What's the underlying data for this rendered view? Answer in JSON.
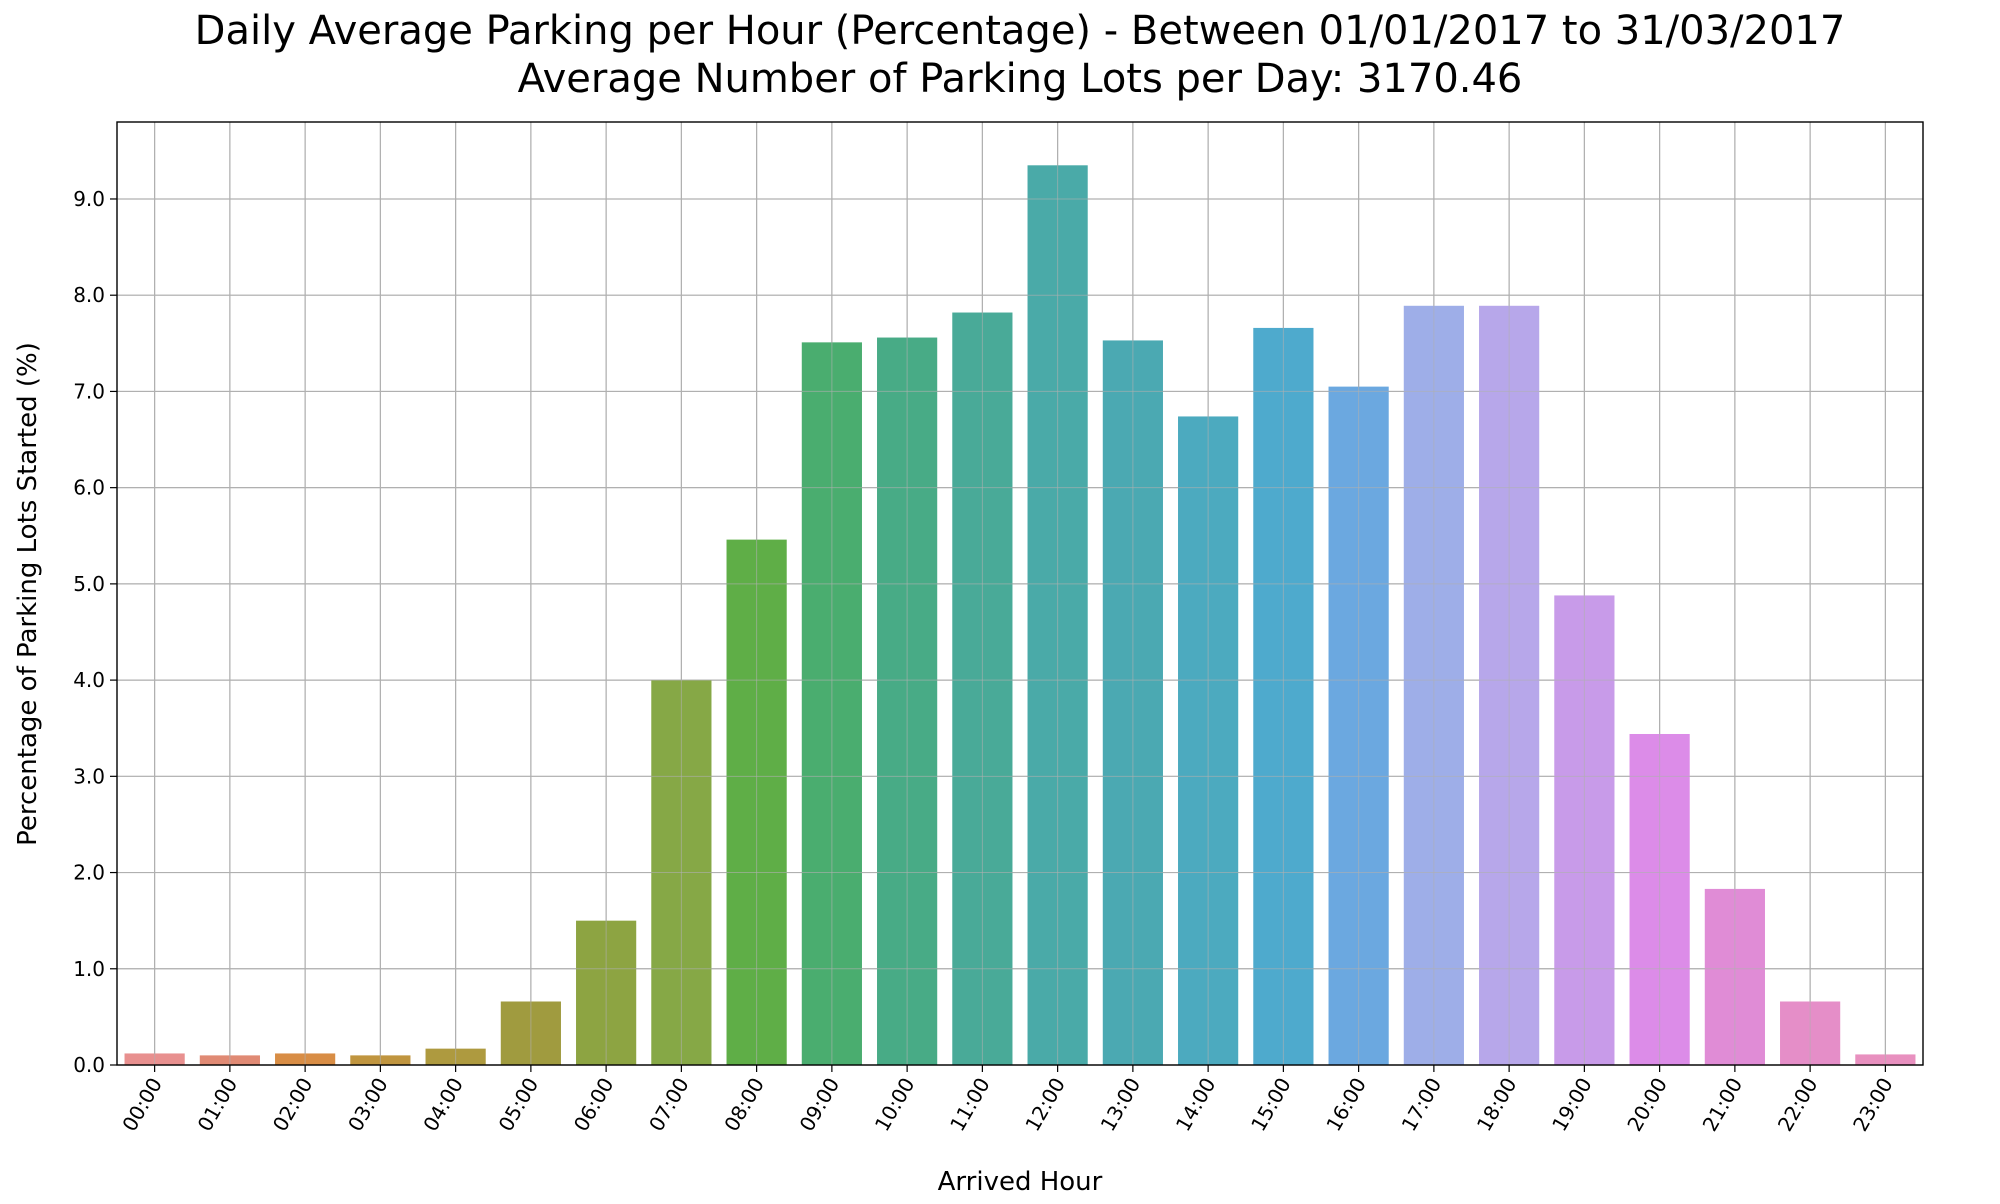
{
  "chart_data": {
    "type": "bar",
    "title": "Daily Average Parking per Hour (Percentage) - Between 01/01/2017 to 31/03/2017",
    "subtitle": "Average Number of Parking Lots per Day: 3170.46",
    "xlabel": "Arrived Hour",
    "ylabel": "Percentage of Parking Lots Started (%)",
    "ylim": [
      0,
      9.8
    ],
    "yticks": [
      "0.0",
      "1.0",
      "2.0",
      "3.0",
      "4.0",
      "5.0",
      "6.0",
      "7.0",
      "8.0",
      "9.0"
    ],
    "grid": true,
    "legend": "none",
    "categories": [
      "00:00",
      "01:00",
      "02:00",
      "03:00",
      "04:00",
      "05:00",
      "06:00",
      "07:00",
      "08:00",
      "09:00",
      "10:00",
      "11:00",
      "12:00",
      "13:00",
      "14:00",
      "15:00",
      "16:00",
      "17:00",
      "18:00",
      "19:00",
      "20:00",
      "21:00",
      "22:00",
      "23:00"
    ],
    "values": [
      0.12,
      0.1,
      0.12,
      0.1,
      0.17,
      0.66,
      1.5,
      4.0,
      5.46,
      7.51,
      7.56,
      7.82,
      9.35,
      7.53,
      6.74,
      7.66,
      7.05,
      7.89,
      7.89,
      4.88,
      3.44,
      1.83,
      0.66,
      0.11
    ],
    "colors": [
      "#e8908f",
      "#e08a74",
      "#d88d45",
      "#c0953f",
      "#ae9a3f",
      "#a09b3f",
      "#8da442",
      "#86a846",
      "#5fae47",
      "#4aad6f",
      "#48ab86",
      "#49aa98",
      "#4aaaa8",
      "#4ba9b2",
      "#4caabf",
      "#4eaacd",
      "#6ba8e0",
      "#9eaee8",
      "#b7a7ea",
      "#c89be9",
      "#dc8ce8",
      "#e08cd6",
      "#e58ec8",
      "#e890bf"
    ]
  }
}
